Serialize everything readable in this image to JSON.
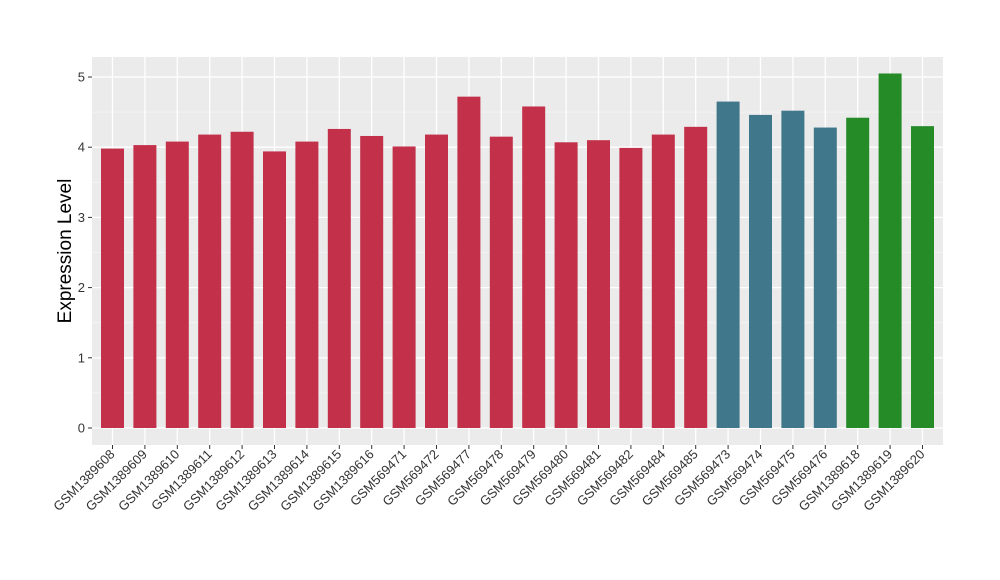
{
  "chart_data": {
    "type": "bar",
    "title": "",
    "xlabel": "",
    "ylabel": "Expression Level",
    "ylim": [
      0,
      5.2
    ],
    "yticks": [
      0,
      1,
      2,
      3,
      4,
      5
    ],
    "grid": true,
    "legend": "none",
    "colors": {
      "red": "#c3304a",
      "teal": "#41778a",
      "green": "#248b27"
    },
    "categories": [
      "GSM1389608",
      "GSM1389609",
      "GSM1389610",
      "GSM1389611",
      "GSM1389612",
      "GSM1389613",
      "GSM1389614",
      "GSM1389615",
      "GSM1389616",
      "GSM569471",
      "GSM569472",
      "GSM569477",
      "GSM569478",
      "GSM569479",
      "GSM569480",
      "GSM569481",
      "GSM569482",
      "GSM569484",
      "GSM569485",
      "GSM569473",
      "GSM569474",
      "GSM569475",
      "GSM569476",
      "GSM1389618",
      "GSM1389619",
      "GSM1389620"
    ],
    "values": [
      3.98,
      4.03,
      4.08,
      4.18,
      4.22,
      3.94,
      4.08,
      4.26,
      4.16,
      4.01,
      4.18,
      4.72,
      4.15,
      4.58,
      4.07,
      4.1,
      3.99,
      4.18,
      4.29,
      4.65,
      4.46,
      4.52,
      4.28,
      4.42,
      5.05,
      4.3
    ],
    "bar_colors": [
      "red",
      "red",
      "red",
      "red",
      "red",
      "red",
      "red",
      "red",
      "red",
      "red",
      "red",
      "red",
      "red",
      "red",
      "red",
      "red",
      "red",
      "red",
      "red",
      "teal",
      "teal",
      "teal",
      "teal",
      "green",
      "green",
      "green"
    ]
  }
}
